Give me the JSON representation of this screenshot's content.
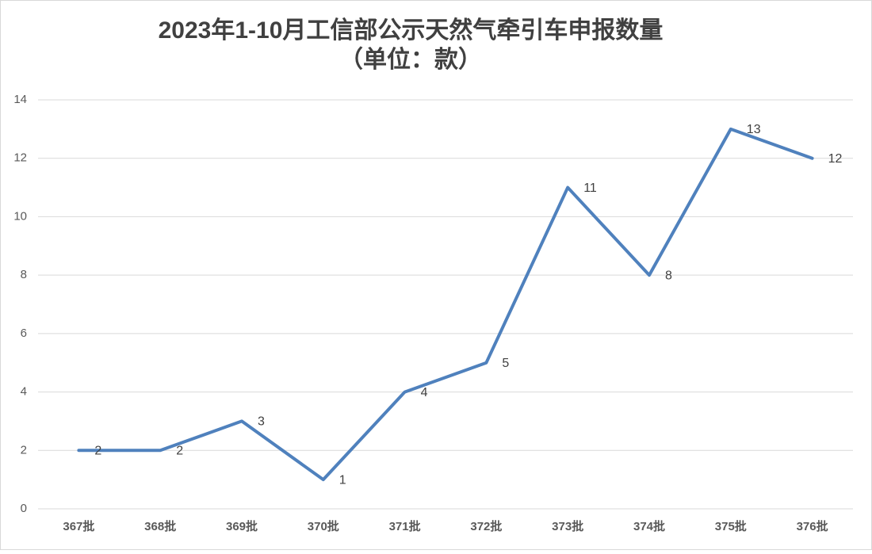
{
  "chart_data": {
    "type": "line",
    "title": "2023年1-10月工信部公示天然气牵引车申报数量",
    "subtitle": "（单位：款）",
    "categories": [
      "367批",
      "368批",
      "369批",
      "370批",
      "371批",
      "372批",
      "373批",
      "374批",
      "375批",
      "376批"
    ],
    "values": [
      2,
      2,
      3,
      1,
      4,
      5,
      11,
      8,
      13,
      12
    ],
    "color": "#4f81bd",
    "ylim": [
      0,
      14
    ],
    "yticks": [
      0,
      2,
      4,
      6,
      8,
      10,
      12,
      14
    ],
    "grid": true
  }
}
